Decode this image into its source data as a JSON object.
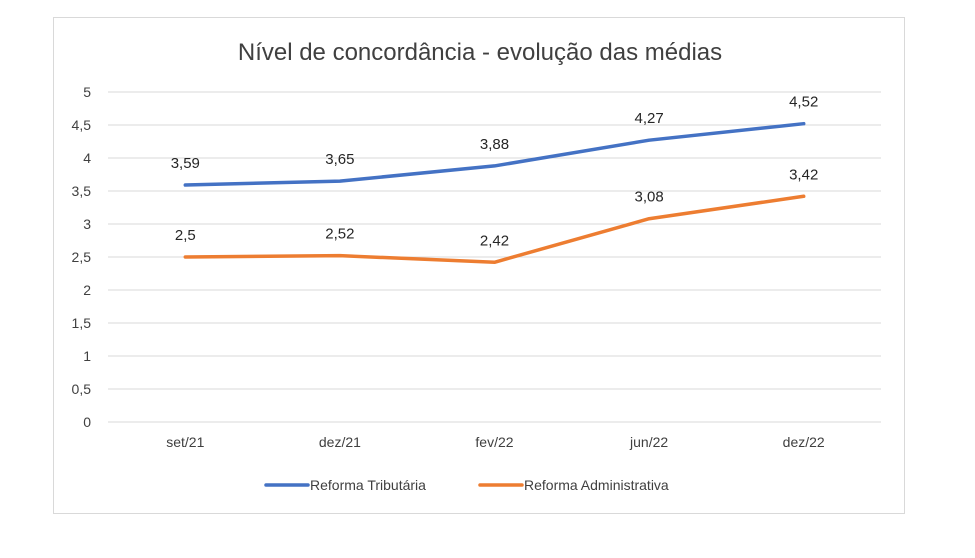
{
  "chart_data": {
    "type": "line",
    "title": "Nível de concordância - evolução das médias",
    "categories": [
      "set/21",
      "dez/21",
      "fev/22",
      "jun/22",
      "dez/22"
    ],
    "ylim": [
      0,
      5
    ],
    "y_ticks": [
      0,
      0.5,
      1,
      1.5,
      2,
      2.5,
      3,
      3.5,
      4,
      4.5,
      5
    ],
    "y_tick_labels": [
      "0",
      "0,5",
      "1",
      "1,5",
      "2",
      "2,5",
      "3",
      "3,5",
      "4",
      "4,5",
      "5"
    ],
    "grid": true,
    "legend_position": "bottom",
    "series": [
      {
        "name": "Reforma Tributária",
        "color": "#4472c4",
        "values": [
          3.59,
          3.65,
          3.88,
          4.27,
          4.52
        ],
        "labels": [
          "3,59",
          "3,65",
          "3,88",
          "4,27",
          "4,52"
        ]
      },
      {
        "name": "Reforma Administrativa",
        "color": "#ed7d31",
        "values": [
          2.5,
          2.52,
          2.42,
          3.08,
          3.42
        ],
        "labels": [
          "2,5",
          "2,52",
          "2,42",
          "3,08",
          "3,42"
        ]
      }
    ]
  }
}
